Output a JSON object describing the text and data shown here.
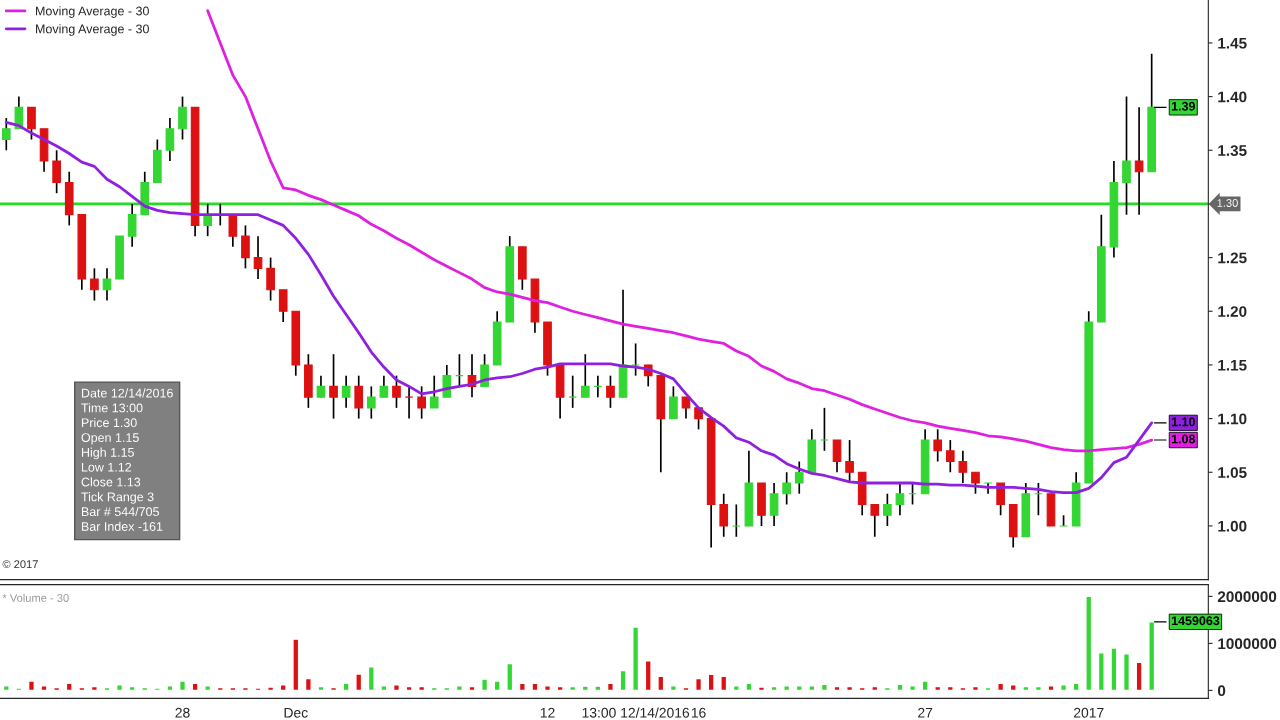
{
  "chart_data": [
    {
      "type": "candlestick",
      "ylim": [
        0.95,
        1.49
      ],
      "yticks": [
        {
          "value": 1.0,
          "label": "1.00"
        },
        {
          "value": 1.05,
          "label": "1.05"
        },
        {
          "value": 1.1,
          "label": "1.10"
        },
        {
          "value": 1.15,
          "label": "1.15"
        },
        {
          "value": 1.2,
          "label": "1.20"
        },
        {
          "value": 1.25,
          "label": "1.25"
        },
        {
          "value": 1.3,
          "label": null
        },
        {
          "value": 1.35,
          "label": "1.35"
        },
        {
          "value": 1.4,
          "label": "1.40"
        },
        {
          "value": 1.45,
          "label": "1.45"
        }
      ],
      "legend": "top left",
      "categories": [
        null,
        null,
        null,
        null,
        null,
        null,
        null,
        null,
        null,
        null,
        null,
        null,
        null,
        null,
        null,
        null,
        null,
        null,
        null,
        null,
        null,
        null,
        null,
        null,
        null,
        null,
        null,
        null,
        null,
        null,
        null,
        null,
        null,
        null,
        null,
        null,
        null,
        null,
        null,
        null,
        null,
        null,
        null,
        null,
        null,
        null,
        null,
        null,
        null,
        null,
        null,
        null,
        null,
        null,
        null,
        null,
        null,
        null,
        null,
        null,
        null,
        null,
        null,
        null,
        null,
        null,
        null,
        null,
        null,
        null,
        null,
        null,
        null,
        null,
        null,
        null,
        null,
        null,
        null,
        null,
        null,
        null,
        null,
        null,
        null,
        null,
        null,
        null,
        null,
        null,
        null,
        null
      ],
      "value_labels": [
        null,
        null,
        null,
        null,
        null,
        null,
        null,
        null,
        null,
        null,
        null,
        null,
        null,
        null,
        null,
        null,
        null,
        null,
        null,
        null,
        null,
        null,
        null,
        null,
        null,
        null,
        null,
        null,
        null,
        null,
        null,
        null,
        null,
        null,
        null,
        null,
        null,
        null,
        null,
        null,
        null,
        null,
        null,
        null,
        null,
        null,
        null,
        null,
        null,
        null,
        null,
        null,
        null,
        null,
        null,
        null,
        null,
        null,
        null,
        null,
        null,
        null,
        null,
        null,
        null,
        null,
        null,
        null,
        null,
        null,
        null,
        null,
        null,
        null,
        null,
        null,
        null,
        null,
        null,
        null,
        null,
        null,
        null,
        null,
        null,
        null,
        null,
        null,
        null,
        null,
        null,
        "1.39"
      ],
      "ohlc": [
        [
          1.36,
          1.38,
          1.35,
          1.37
        ],
        [
          1.37,
          1.4,
          1.37,
          1.39
        ],
        [
          1.39,
          1.39,
          1.36,
          1.37
        ],
        [
          1.37,
          1.37,
          1.33,
          1.34
        ],
        [
          1.34,
          1.35,
          1.31,
          1.32
        ],
        [
          1.32,
          1.33,
          1.28,
          1.29
        ],
        [
          1.29,
          1.29,
          1.22,
          1.23
        ],
        [
          1.23,
          1.24,
          1.21,
          1.22
        ],
        [
          1.22,
          1.24,
          1.21,
          1.23
        ],
        [
          1.23,
          1.27,
          1.23,
          1.27
        ],
        [
          1.27,
          1.3,
          1.26,
          1.29
        ],
        [
          1.29,
          1.33,
          1.29,
          1.32
        ],
        [
          1.32,
          1.36,
          1.32,
          1.35
        ],
        [
          1.35,
          1.38,
          1.34,
          1.37
        ],
        [
          1.37,
          1.4,
          1.36,
          1.39
        ],
        [
          1.39,
          1.39,
          1.27,
          1.28
        ],
        [
          1.28,
          1.3,
          1.27,
          1.29
        ],
        [
          1.29,
          1.3,
          1.28,
          1.29
        ],
        [
          1.29,
          1.29,
          1.26,
          1.27
        ],
        [
          1.27,
          1.28,
          1.24,
          1.25
        ],
        [
          1.25,
          1.27,
          1.23,
          1.24
        ],
        [
          1.24,
          1.25,
          1.21,
          1.22
        ],
        [
          1.22,
          1.22,
          1.19,
          1.2
        ],
        [
          1.2,
          1.2,
          1.14,
          1.15
        ],
        [
          1.15,
          1.16,
          1.11,
          1.12
        ],
        [
          1.12,
          1.14,
          1.12,
          1.13
        ],
        [
          1.13,
          1.16,
          1.1,
          1.12
        ],
        [
          1.12,
          1.14,
          1.11,
          1.13
        ],
        [
          1.13,
          1.14,
          1.1,
          1.11
        ],
        [
          1.11,
          1.13,
          1.1,
          1.12
        ],
        [
          1.12,
          1.14,
          1.12,
          1.13
        ],
        [
          1.13,
          1.14,
          1.11,
          1.12
        ],
        [
          1.12,
          1.13,
          1.1,
          1.12
        ],
        [
          1.12,
          1.13,
          1.1,
          1.11
        ],
        [
          1.11,
          1.14,
          1.11,
          1.12
        ],
        [
          1.12,
          1.15,
          1.12,
          1.14
        ],
        [
          1.14,
          1.16,
          1.13,
          1.14
        ],
        [
          1.14,
          1.16,
          1.12,
          1.13
        ],
        [
          1.13,
          1.16,
          1.13,
          1.15
        ],
        [
          1.15,
          1.2,
          1.15,
          1.19
        ],
        [
          1.19,
          1.27,
          1.19,
          1.26
        ],
        [
          1.26,
          1.26,
          1.22,
          1.23
        ],
        [
          1.23,
          1.23,
          1.18,
          1.19
        ],
        [
          1.19,
          1.19,
          1.14,
          1.15
        ],
        [
          1.15,
          1.15,
          1.1,
          1.12
        ],
        [
          1.12,
          1.14,
          1.11,
          1.12
        ],
        [
          1.12,
          1.16,
          1.12,
          1.13
        ],
        [
          1.13,
          1.14,
          1.12,
          1.13
        ],
        [
          1.13,
          1.14,
          1.11,
          1.12
        ],
        [
          1.12,
          1.22,
          1.12,
          1.15
        ],
        [
          1.15,
          1.17,
          1.14,
          1.15
        ],
        [
          1.15,
          1.15,
          1.13,
          1.14
        ],
        [
          1.14,
          1.14,
          1.05,
          1.1
        ],
        [
          1.1,
          1.13,
          1.1,
          1.12
        ],
        [
          1.12,
          1.12,
          1.1,
          1.11
        ],
        [
          1.11,
          1.11,
          1.09,
          1.1
        ],
        [
          1.1,
          1.1,
          0.98,
          1.02
        ],
        [
          1.02,
          1.03,
          0.99,
          1.0
        ],
        [
          1.0,
          1.02,
          0.99,
          1.0
        ],
        [
          1.0,
          1.07,
          1.0,
          1.04
        ],
        [
          1.04,
          1.04,
          1.0,
          1.01
        ],
        [
          1.01,
          1.04,
          1.0,
          1.03
        ],
        [
          1.03,
          1.05,
          1.02,
          1.04
        ],
        [
          1.04,
          1.06,
          1.03,
          1.05
        ],
        [
          1.05,
          1.09,
          1.05,
          1.08
        ],
        [
          1.08,
          1.11,
          1.07,
          1.08
        ],
        [
          1.08,
          1.08,
          1.05,
          1.06
        ],
        [
          1.06,
          1.08,
          1.04,
          1.05
        ],
        [
          1.05,
          1.05,
          1.01,
          1.02
        ],
        [
          1.02,
          1.02,
          0.99,
          1.01
        ],
        [
          1.01,
          1.03,
          1.0,
          1.02
        ],
        [
          1.02,
          1.04,
          1.01,
          1.03
        ],
        [
          1.03,
          1.04,
          1.02,
          1.03
        ],
        [
          1.03,
          1.09,
          1.03,
          1.08
        ],
        [
          1.08,
          1.09,
          1.06,
          1.07
        ],
        [
          1.07,
          1.08,
          1.05,
          1.06
        ],
        [
          1.06,
          1.07,
          1.04,
          1.05
        ],
        [
          1.05,
          1.05,
          1.03,
          1.04
        ],
        [
          1.04,
          1.04,
          1.03,
          1.04
        ],
        [
          1.04,
          1.04,
          1.01,
          1.02
        ],
        [
          1.02,
          1.02,
          0.98,
          0.99
        ],
        [
          0.99,
          1.04,
          0.99,
          1.03
        ],
        [
          1.03,
          1.04,
          1.01,
          1.03
        ],
        [
          1.03,
          1.03,
          1.0,
          1.0
        ],
        [
          1.0,
          1.01,
          1.0,
          1.0
        ],
        [
          1.0,
          1.05,
          1.0,
          1.04
        ],
        [
          1.04,
          1.2,
          1.04,
          1.19
        ],
        [
          1.19,
          1.29,
          1.19,
          1.26
        ],
        [
          1.26,
          1.34,
          1.25,
          1.32
        ],
        [
          1.32,
          1.4,
          1.29,
          1.34
        ],
        [
          1.34,
          1.39,
          1.29,
          1.33
        ],
        [
          1.33,
          1.44,
          1.33,
          1.39
        ]
      ],
      "colors": [
        "#33d633",
        "#33d633",
        "#dd1111",
        "#dd1111",
        "#dd1111",
        "#dd1111",
        "#dd1111",
        "#dd1111",
        "#33d633",
        "#33d633",
        "#33d633",
        "#33d633",
        "#33d633",
        "#33d633",
        "#33d633",
        "#dd1111",
        "#33d633",
        "#dd1111",
        "#dd1111",
        "#dd1111",
        "#dd1111",
        "#dd1111",
        "#dd1111",
        "#dd1111",
        "#dd1111",
        "#33d633",
        "#dd1111",
        "#33d633",
        "#dd1111",
        "#33d633",
        "#33d633",
        "#dd1111",
        "#dd1111",
        "#dd1111",
        "#33d633",
        "#33d633",
        "#33d633",
        "#dd1111",
        "#33d633",
        "#33d633",
        "#33d633",
        "#dd1111",
        "#dd1111",
        "#dd1111",
        "#dd1111",
        "#33d633",
        "#33d633",
        "#33d633",
        "#dd1111",
        "#33d633",
        "#33d633",
        "#dd1111",
        "#dd1111",
        "#33d633",
        "#dd1111",
        "#dd1111",
        "#dd1111",
        "#dd1111",
        "#33d633",
        "#33d633",
        "#dd1111",
        "#33d633",
        "#33d633",
        "#33d633",
        "#33d633",
        "#33d633",
        "#dd1111",
        "#dd1111",
        "#dd1111",
        "#dd1111",
        "#33d633",
        "#33d633",
        "#33d633",
        "#33d633",
        "#dd1111",
        "#dd1111",
        "#dd1111",
        "#dd1111",
        "#33d633",
        "#dd1111",
        "#dd1111",
        "#33d633",
        "#33d633",
        "#dd1111",
        "#33d633",
        "#33d633",
        "#33d633",
        "#33d633",
        "#33d633",
        "#33d633",
        "#dd1111",
        "#33d633"
      ],
      "series": [
        {
          "type": "line",
          "name": "Moving Average - 30",
          "color": "#e020e0",
          "values": [
            null,
            null,
            null,
            null,
            null,
            null,
            null,
            null,
            null,
            null,
            null,
            null,
            null,
            null,
            null,
            null,
            1.48,
            1.45,
            1.42,
            1.4,
            1.37,
            1.34,
            1.315,
            1.313,
            1.308,
            1.304,
            1.299,
            1.294,
            1.289,
            1.281,
            1.275,
            1.268,
            1.262,
            1.255,
            1.248,
            1.242,
            1.236,
            1.23,
            1.222,
            1.218,
            1.216,
            1.213,
            1.21,
            1.208,
            1.204,
            1.2,
            1.197,
            1.194,
            1.191,
            1.188,
            1.186,
            1.184,
            1.182,
            1.18,
            1.177,
            1.174,
            1.172,
            1.17,
            1.163,
            1.158,
            1.149,
            1.144,
            1.137,
            1.133,
            1.128,
            1.126,
            1.122,
            1.118,
            1.113,
            1.109,
            1.105,
            1.101,
            1.098,
            1.096,
            1.093,
            1.091,
            1.089,
            1.087,
            1.084,
            1.083,
            1.081,
            1.079,
            1.076,
            1.073,
            1.071,
            1.07,
            1.07,
            1.071,
            1.072,
            1.073,
            1.076,
            1.08
          ],
          "value_labels": [
            null,
            null,
            null,
            null,
            null,
            null,
            null,
            null,
            null,
            null,
            null,
            null,
            null,
            null,
            null,
            null,
            null,
            null,
            null,
            null,
            null,
            null,
            null,
            null,
            null,
            null,
            null,
            null,
            null,
            null,
            null,
            null,
            null,
            null,
            null,
            null,
            null,
            null,
            null,
            null,
            null,
            null,
            null,
            null,
            null,
            null,
            null,
            null,
            null,
            null,
            null,
            null,
            null,
            null,
            null,
            null,
            null,
            null,
            null,
            null,
            null,
            null,
            null,
            null,
            null,
            null,
            null,
            null,
            null,
            null,
            null,
            null,
            null,
            null,
            null,
            null,
            null,
            null,
            null,
            null,
            null,
            null,
            null,
            null,
            null,
            null,
            null,
            null,
            null,
            null,
            null,
            "1.08"
          ]
        },
        {
          "type": "line",
          "name": "Moving Average - 30",
          "color": "#9020e0",
          "values": [
            1.376,
            1.373,
            1.366,
            1.36,
            1.354,
            1.347,
            1.339,
            1.335,
            1.323,
            1.316,
            1.307,
            1.298,
            1.294,
            1.292,
            1.291,
            1.29,
            1.29,
            1.29,
            1.29,
            1.29,
            1.29,
            1.285,
            1.28,
            1.268,
            1.253,
            1.234,
            1.214,
            1.197,
            1.18,
            1.162,
            1.148,
            1.136,
            1.13,
            1.123,
            1.125,
            1.128,
            1.13,
            1.132,
            1.136,
            1.138,
            1.139,
            1.142,
            1.146,
            1.148,
            1.151,
            1.151,
            1.151,
            1.151,
            1.151,
            1.149,
            1.148,
            1.146,
            1.142,
            1.137,
            1.123,
            1.11,
            1.101,
            1.093,
            1.082,
            1.078,
            1.07,
            1.066,
            1.058,
            1.053,
            1.049,
            1.047,
            1.044,
            1.041,
            1.04,
            1.04,
            1.04,
            1.04,
            1.04,
            1.039,
            1.039,
            1.038,
            1.038,
            1.037,
            1.036,
            1.036,
            1.036,
            1.035,
            1.034,
            1.032,
            1.031,
            1.031,
            1.035,
            1.045,
            1.059,
            1.064,
            1.08,
            1.096
          ],
          "value_labels": [
            null,
            null,
            null,
            null,
            null,
            null,
            null,
            null,
            null,
            null,
            null,
            null,
            null,
            null,
            null,
            null,
            null,
            null,
            null,
            null,
            null,
            null,
            null,
            null,
            null,
            null,
            null,
            null,
            null,
            null,
            null,
            null,
            null,
            null,
            null,
            null,
            null,
            null,
            null,
            null,
            null,
            null,
            null,
            null,
            null,
            null,
            null,
            null,
            null,
            null,
            null,
            null,
            null,
            null,
            null,
            null,
            null,
            null,
            null,
            null,
            null,
            null,
            null,
            null,
            null,
            null,
            null,
            null,
            null,
            null,
            null,
            null,
            null,
            null,
            null,
            null,
            null,
            null,
            null,
            null,
            null,
            null,
            null,
            null,
            null,
            null,
            null,
            null,
            null,
            null,
            null,
            "1.10"
          ]
        }
      ],
      "ref_lines": [
        {
          "axis": "y",
          "value": 1.3,
          "label": "1.30",
          "color": "#22dd22"
        }
      ],
      "annotations": [
        "Date 12/14/2016",
        "Time 13:00",
        "Price 1.30",
        "Open 1.15",
        "High 1.15",
        "Low 1.12",
        "Close 1.13",
        "Tick Range 3",
        "Bar # 544/705",
        "Bar Index -161",
        "© 2017"
      ]
    },
    {
      "type": "bar",
      "ylim": [
        -170000,
        2250000
      ],
      "yticks": [
        0,
        1000000,
        2000000
      ],
      "categories": [
        null,
        null,
        null,
        null,
        null,
        null,
        null,
        null,
        null,
        null,
        null,
        null,
        null,
        null,
        "28",
        null,
        null,
        null,
        null,
        null,
        null,
        null,
        null,
        "Dec",
        null,
        null,
        null,
        null,
        null,
        null,
        null,
        null,
        null,
        null,
        null,
        null,
        null,
        null,
        null,
        null,
        null,
        null,
        null,
        "12",
        null,
        null,
        null,
        null,
        null,
        null,
        "13:00 12/14/2016",
        null,
        null,
        null,
        null,
        "16",
        null,
        null,
        null,
        null,
        null,
        null,
        null,
        null,
        null,
        null,
        null,
        null,
        null,
        null,
        null,
        null,
        null,
        "27",
        null,
        null,
        null,
        null,
        null,
        null,
        null,
        null,
        null,
        null,
        null,
        null,
        "2017",
        null,
        null,
        null,
        null,
        null
      ],
      "values": [
        100000,
        50000,
        200000,
        100000,
        60000,
        150000,
        60000,
        80000,
        60000,
        120000,
        80000,
        60000,
        50000,
        100000,
        200000,
        150000,
        100000,
        60000,
        60000,
        60000,
        50000,
        70000,
        120000,
        1090000,
        250000,
        80000,
        60000,
        150000,
        350000,
        500000,
        100000,
        120000,
        80000,
        80000,
        60000,
        60000,
        100000,
        80000,
        240000,
        200000,
        570000,
        150000,
        150000,
        100000,
        80000,
        80000,
        90000,
        90000,
        150000,
        420000,
        1350000,
        630000,
        300000,
        100000,
        60000,
        250000,
        340000,
        300000,
        100000,
        150000,
        70000,
        80000,
        100000,
        100000,
        100000,
        130000,
        80000,
        80000,
        60000,
        80000,
        60000,
        130000,
        100000,
        200000,
        80000,
        80000,
        60000,
        80000,
        60000,
        150000,
        120000,
        80000,
        80000,
        100000,
        120000,
        150000,
        2000000,
        800000,
        900000,
        780000,
        600000,
        1459063
      ],
      "colors": [
        "#33d633",
        "#33d633",
        "#dd1111",
        "#dd1111",
        "#dd1111",
        "#dd1111",
        "#dd1111",
        "#dd1111",
        "#33d633",
        "#33d633",
        "#33d633",
        "#33d633",
        "#33d633",
        "#33d633",
        "#33d633",
        "#dd1111",
        "#33d633",
        "#dd1111",
        "#dd1111",
        "#dd1111",
        "#dd1111",
        "#dd1111",
        "#dd1111",
        "#dd1111",
        "#dd1111",
        "#33d633",
        "#dd1111",
        "#33d633",
        "#dd1111",
        "#33d633",
        "#33d633",
        "#dd1111",
        "#dd1111",
        "#dd1111",
        "#33d633",
        "#33d633",
        "#33d633",
        "#dd1111",
        "#33d633",
        "#33d633",
        "#33d633",
        "#dd1111",
        "#dd1111",
        "#dd1111",
        "#dd1111",
        "#33d633",
        "#33d633",
        "#33d633",
        "#dd1111",
        "#33d633",
        "#33d633",
        "#dd1111",
        "#dd1111",
        "#33d633",
        "#dd1111",
        "#dd1111",
        "#dd1111",
        "#dd1111",
        "#33d633",
        "#33d633",
        "#dd1111",
        "#33d633",
        "#33d633",
        "#33d633",
        "#33d633",
        "#33d633",
        "#dd1111",
        "#dd1111",
        "#dd1111",
        "#dd1111",
        "#33d633",
        "#33d633",
        "#33d633",
        "#33d633",
        "#dd1111",
        "#dd1111",
        "#dd1111",
        "#dd1111",
        "#33d633",
        "#dd1111",
        "#dd1111",
        "#33d633",
        "#33d633",
        "#dd1111",
        "#33d633",
        "#33d633",
        "#33d633",
        "#33d633",
        "#33d633",
        "#33d633",
        "#dd1111",
        "#33d633"
      ],
      "value_labels": [
        null,
        null,
        null,
        null,
        null,
        null,
        null,
        null,
        null,
        null,
        null,
        null,
        null,
        null,
        null,
        null,
        null,
        null,
        null,
        null,
        null,
        null,
        null,
        null,
        null,
        null,
        null,
        null,
        null,
        null,
        null,
        null,
        null,
        null,
        null,
        null,
        null,
        null,
        null,
        null,
        null,
        null,
        null,
        null,
        null,
        null,
        null,
        null,
        null,
        null,
        null,
        null,
        null,
        null,
        null,
        null,
        null,
        null,
        null,
        null,
        null,
        null,
        null,
        null,
        null,
        null,
        null,
        null,
        null,
        null,
        null,
        null,
        null,
        null,
        null,
        null,
        null,
        null,
        null,
        null,
        null,
        null,
        null,
        null,
        null,
        null,
        null,
        null,
        null,
        null,
        null,
        "1459063"
      ],
      "annotations": [
        "* Volume - 30"
      ]
    }
  ]
}
